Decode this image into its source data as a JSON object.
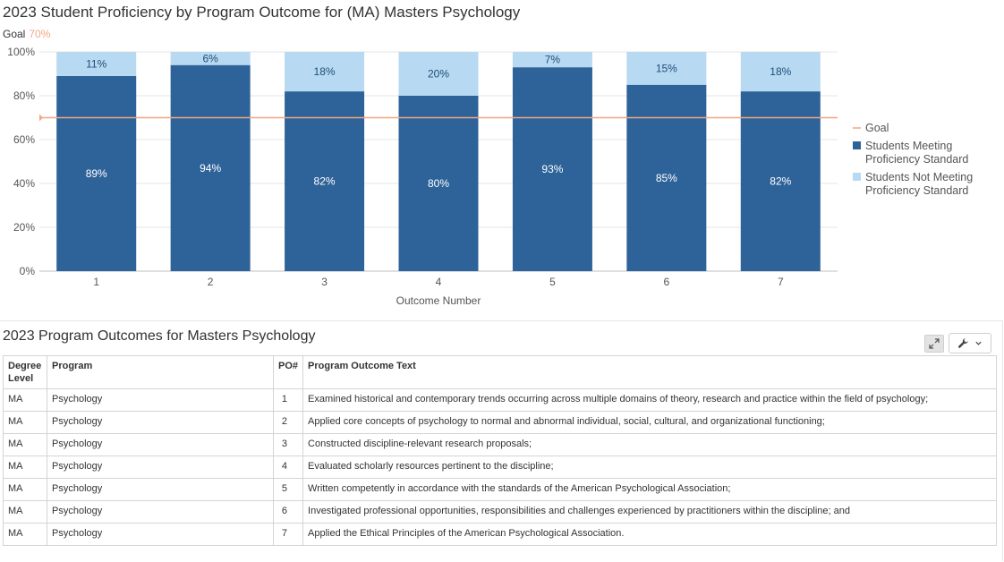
{
  "chart_data": {
    "type": "bar",
    "stacked": true,
    "title": "2023 Student Proficiency by Program Outcome for (MA) Masters Psychology",
    "goal_label": "Goal",
    "goal_value_text": "70%",
    "goal_value": 70,
    "categories": [
      "1",
      "2",
      "3",
      "4",
      "5",
      "6",
      "7"
    ],
    "xlabel": "Outcome Number",
    "ylabel": "",
    "ylim": [
      0,
      100
    ],
    "yticks": [
      "0%",
      "20%",
      "40%",
      "60%",
      "80%",
      "100%"
    ],
    "series": [
      {
        "name": "Students Meeting Proficiency Standard",
        "values": [
          89,
          94,
          82,
          80,
          93,
          85,
          82
        ],
        "labels": [
          "89%",
          "94%",
          "82%",
          "80%",
          "93%",
          "85%",
          "82%"
        ],
        "color": "#2e6399"
      },
      {
        "name": "Students Not Meeting Proficiency Standard",
        "values": [
          11,
          6,
          18,
          20,
          7,
          15,
          18
        ],
        "labels": [
          "11%",
          "6%",
          "18%",
          "20%",
          "7%",
          "15%",
          "18%"
        ],
        "color": "#b7d9f2"
      }
    ],
    "goal_line_color": "#f4a582",
    "legend": {
      "placement": "right",
      "goal": "Goal",
      "meeting": [
        "Students Meeting",
        "Proficiency Standard"
      ],
      "not_meeting": [
        "Students Not Meeting",
        "Proficiency Standard"
      ]
    },
    "grid": true
  },
  "table": {
    "title": "2023 Program Outcomes for Masters Psychology",
    "headers": {
      "degree": "Degree Level",
      "program": "Program",
      "po": "PO#",
      "text": "Program Outcome Text"
    },
    "rows": [
      {
        "degree": "MA",
        "program": "Psychology",
        "po": "1",
        "text": "Examined historical and contemporary trends occurring across multiple domains of theory, research and practice within the field of psychology;"
      },
      {
        "degree": "MA",
        "program": "Psychology",
        "po": "2",
        "text": "Applied core concepts of psychology to normal and abnormal individual, social, cultural, and organizational functioning;"
      },
      {
        "degree": "MA",
        "program": "Psychology",
        "po": "3",
        "text": "Constructed discipline-relevant research proposals;"
      },
      {
        "degree": "MA",
        "program": "Psychology",
        "po": "4",
        "text": "Evaluated scholarly resources pertinent to the discipline;"
      },
      {
        "degree": "MA",
        "program": "Psychology",
        "po": "5",
        "text": "Written competently in accordance with the standards of the American Psychological Association;"
      },
      {
        "degree": "MA",
        "program": "Psychology",
        "po": "6",
        "text": "Investigated professional opportunities, responsibilities and challenges experienced by practitioners within the discipline; and"
      },
      {
        "degree": "MA",
        "program": "Psychology",
        "po": "7",
        "text": "Applied the Ethical Principles of the American Psychological Association."
      }
    ]
  },
  "toolbar": {
    "expand_icon": "expand-icon",
    "settings_icon": "wrench-icon",
    "dropdown_icon": "chevron-down-icon"
  }
}
